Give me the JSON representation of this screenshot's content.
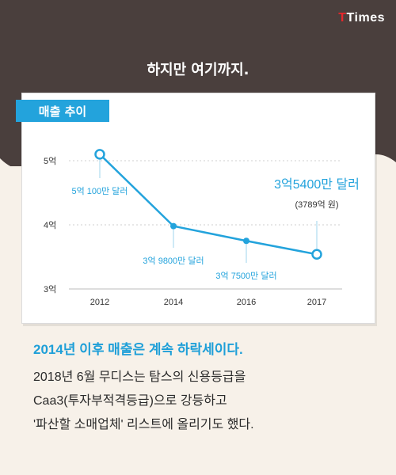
{
  "brand": {
    "logo_t": "T",
    "logo_rest": "Times"
  },
  "headline": "하지만 여기까지.",
  "card": {
    "tab_label": "매출 추이"
  },
  "chart_data": {
    "type": "line",
    "title": "매출 추이",
    "x": [
      "2012",
      "2014",
      "2016",
      "2017"
    ],
    "series": [
      {
        "values": [
          5.1,
          3.98,
          3.75,
          3.54
        ]
      }
    ],
    "ylim": [
      3,
      5
    ],
    "y_ticks": [
      {
        "value": 5,
        "label": "5억"
      },
      {
        "value": 4,
        "label": "4억"
      },
      {
        "value": 3,
        "label": "3억"
      }
    ],
    "data_labels": [
      "5억 100만 달러",
      "3억 9800만 달러",
      "3억 7500만 달러",
      "3억5400만 달러"
    ],
    "sub_label": "(3789억 원)",
    "grid": true,
    "color": "#23a3dc"
  },
  "text": {
    "lead": "2014년 이후 매출은 계속 하락세이다.",
    "lines": [
      "2018년 6월 무디스는 탐스의 신용등급을",
      "Caa3(투자부적격등급)으로 강등하고",
      "'파산할 소매업체' 리스트에 올리기도 했다."
    ]
  }
}
